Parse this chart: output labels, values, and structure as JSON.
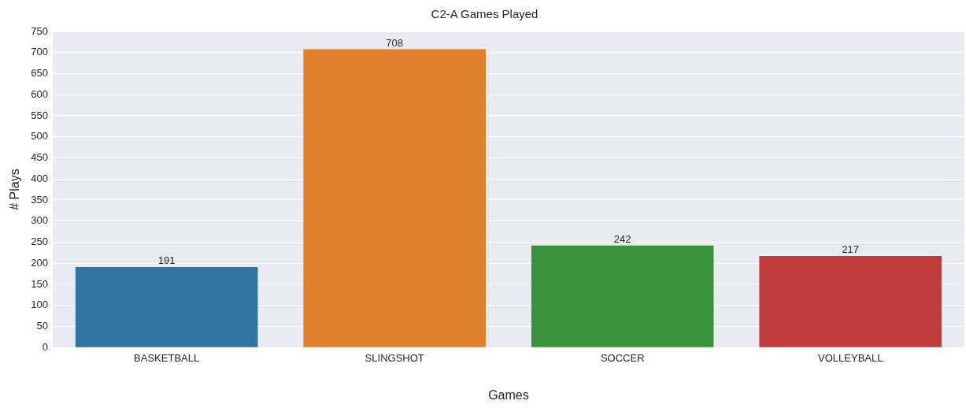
{
  "chart_data": {
    "type": "bar",
    "title": "C2-A Games Played",
    "xlabel": "Games",
    "ylabel": "# Plays",
    "categories": [
      "BASKETBALL",
      "SLINGSHOT",
      "SOCCER",
      "VOLLEYBALL"
    ],
    "values": [
      191,
      708,
      242,
      217
    ],
    "colors": [
      "#3274a1",
      "#e1812c",
      "#3a923a",
      "#c03d3e"
    ],
    "ylim": [
      0,
      750
    ],
    "yticks": [
      0,
      50,
      100,
      150,
      200,
      250,
      300,
      350,
      400,
      450,
      500,
      550,
      600,
      650,
      700,
      750
    ],
    "grid": "y",
    "data_labels": true
  }
}
